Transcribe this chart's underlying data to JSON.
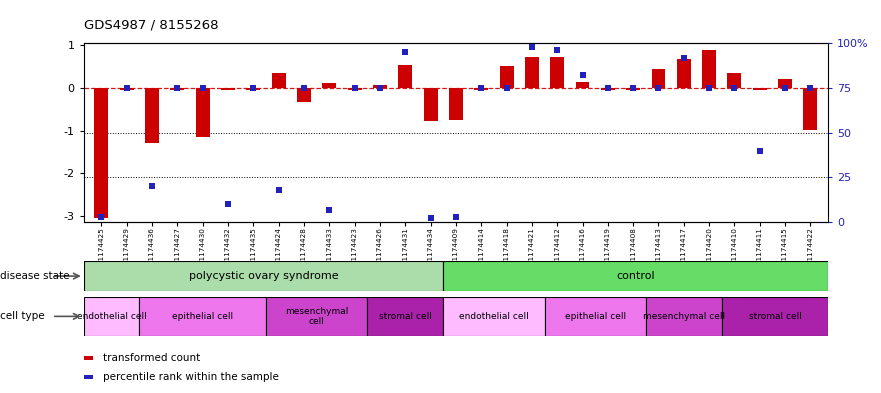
{
  "title": "GDS4987 / 8155268",
  "samples": [
    "GSM1174425",
    "GSM1174429",
    "GSM1174436",
    "GSM1174427",
    "GSM1174430",
    "GSM1174432",
    "GSM1174435",
    "GSM1174424",
    "GSM1174428",
    "GSM1174433",
    "GSM1174423",
    "GSM1174426",
    "GSM1174431",
    "GSM1174434",
    "GSM1174409",
    "GSM1174414",
    "GSM1174418",
    "GSM1174421",
    "GSM1174412",
    "GSM1174416",
    "GSM1174419",
    "GSM1174408",
    "GSM1174413",
    "GSM1174417",
    "GSM1174420",
    "GSM1174410",
    "GSM1174411",
    "GSM1174415",
    "GSM1174422"
  ],
  "red_values": [
    -3.05,
    -0.05,
    -1.3,
    -0.06,
    -1.15,
    -0.06,
    -0.06,
    0.35,
    -0.32,
    0.12,
    -0.06,
    0.06,
    0.55,
    -0.78,
    -0.75,
    -0.06,
    0.52,
    0.72,
    0.73,
    0.15,
    -0.06,
    -0.06,
    0.44,
    0.68,
    0.88,
    0.35,
    -0.06,
    0.22,
    -0.98
  ],
  "blue_values": [
    3,
    75,
    20,
    75,
    75,
    10,
    75,
    18,
    75,
    7,
    75,
    75,
    95,
    2,
    3,
    75,
    75,
    98,
    96,
    82,
    75,
    75,
    75,
    92,
    75,
    75,
    40,
    75,
    75
  ],
  "ylim_left": [
    -3.15,
    1.05
  ],
  "yticks_left": [
    -3,
    -2,
    -1,
    0,
    1
  ],
  "yticks_right": [
    0,
    25,
    50,
    75,
    100
  ],
  "n_pcos": 14,
  "n_samples": 29,
  "pcos_cell_bounds": [
    0,
    2,
    7,
    11,
    14
  ],
  "ctrl_cell_bounds": [
    14,
    18,
    22,
    25,
    29
  ],
  "pcos_cell_labels": [
    "endothelial cell",
    "epithelial cell",
    "mesenchymal\ncell",
    "stromal cell"
  ],
  "ctrl_cell_labels": [
    "endothelial cell",
    "epithelial cell",
    "mesenchymal cell",
    "stromal cell"
  ],
  "color_red": "#cc0000",
  "color_blue": "#2222bb",
  "color_pcos_light": "#aaddaa",
  "color_pcos_dark": "#55cc55",
  "color_ctrl_light": "#66dd66",
  "color_ctrl_dark": "#33bb33",
  "color_endo": "#ffbbff",
  "color_epi": "#ee77ee",
  "color_meso": "#cc44cc",
  "color_stro": "#aa22aa",
  "bar_width": 0.55,
  "marker_size": 5
}
